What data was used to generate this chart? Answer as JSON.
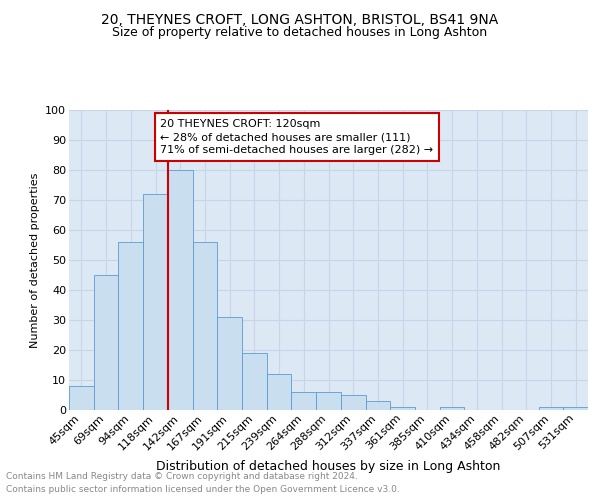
{
  "title": "20, THEYNES CROFT, LONG ASHTON, BRISTOL, BS41 9NA",
  "subtitle": "Size of property relative to detached houses in Long Ashton",
  "xlabel": "Distribution of detached houses by size in Long Ashton",
  "ylabel": "Number of detached properties",
  "footnote1": "Contains HM Land Registry data © Crown copyright and database right 2024.",
  "footnote2": "Contains public sector information licensed under the Open Government Licence v3.0.",
  "categories": [
    "45sqm",
    "69sqm",
    "94sqm",
    "118sqm",
    "142sqm",
    "167sqm",
    "191sqm",
    "215sqm",
    "239sqm",
    "264sqm",
    "288sqm",
    "312sqm",
    "337sqm",
    "361sqm",
    "385sqm",
    "410sqm",
    "434sqm",
    "458sqm",
    "482sqm",
    "507sqm",
    "531sqm"
  ],
  "values": [
    8,
    45,
    56,
    72,
    80,
    56,
    31,
    19,
    12,
    6,
    6,
    5,
    3,
    1,
    0,
    1,
    0,
    0,
    0,
    1,
    1
  ],
  "bar_color": "#c9dff0",
  "bar_edge_color": "#5b9bd5",
  "property_line_x": 3.0,
  "property_label": "20 THEYNES CROFT: 120sqm",
  "annotation_line1": "← 28% of detached houses are smaller (111)",
  "annotation_line2": "71% of semi-detached houses are larger (282) →",
  "annotation_box_color": "#ffffff",
  "annotation_box_edge": "#cc0000",
  "vline_color": "#cc0000",
  "ylim": [
    0,
    100
  ],
  "yticks": [
    0,
    10,
    20,
    30,
    40,
    50,
    60,
    70,
    80,
    90,
    100
  ],
  "grid_color": "#c8d4e8",
  "background_color": "#dde8f5",
  "title_fontsize": 10,
  "subtitle_fontsize": 9,
  "xlabel_fontsize": 9,
  "ylabel_fontsize": 8,
  "tick_fontsize": 8,
  "annot_fontsize": 8,
  "footnote_fontsize": 6.5
}
